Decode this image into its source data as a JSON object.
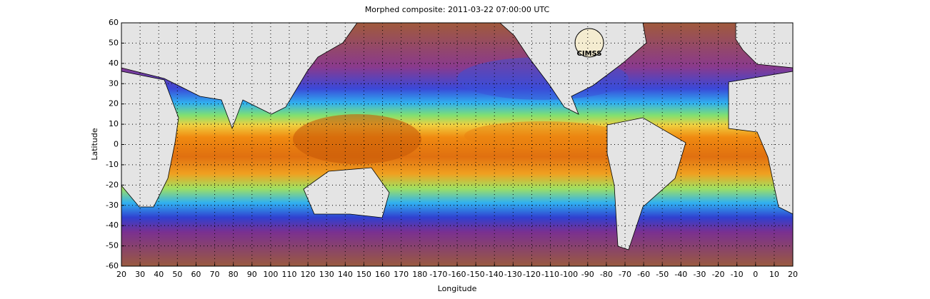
{
  "chart_data": {
    "type": "map",
    "title": "Morphed composite: 2011-03-22 07:00:00 UTC",
    "x_label": "Longitude",
    "y_label": "Latitude",
    "logo": "CIMSS",
    "xlim": [
      20,
      380
    ],
    "xticks": [
      20,
      30,
      40,
      50,
      60,
      70,
      80,
      90,
      100,
      110,
      120,
      130,
      140,
      150,
      160,
      170,
      180,
      {
        "value": 190,
        "label": "-170"
      },
      {
        "value": 200,
        "label": "-160"
      },
      {
        "value": 210,
        "label": "-150"
      },
      {
        "value": 220,
        "label": "-140"
      },
      {
        "value": 230,
        "label": "-130"
      },
      {
        "value": 240,
        "label": "-120"
      },
      {
        "value": 250,
        "label": "-110"
      },
      {
        "value": 260,
        "label": "-100"
      },
      {
        "value": 270,
        "label": "-90"
      },
      {
        "value": 280,
        "label": "-80"
      },
      {
        "value": 290,
        "label": "-70"
      },
      {
        "value": 300,
        "label": "-60"
      },
      {
        "value": 310,
        "label": "-50"
      },
      {
        "value": 320,
        "label": "-40"
      },
      {
        "value": 330,
        "label": "-30"
      },
      {
        "value": 340,
        "label": "-20"
      },
      {
        "value": 350,
        "label": "-10"
      },
      {
        "value": 360,
        "label": "0"
      },
      {
        "value": 370,
        "label": "10"
      },
      {
        "value": 380,
        "label": "20"
      }
    ],
    "ylim": [
      -60,
      60
    ],
    "yticks": [
      -60,
      -50,
      -40,
      -30,
      -20,
      -10,
      0,
      10,
      20,
      30,
      40,
      50,
      60
    ],
    "grid": true
  }
}
